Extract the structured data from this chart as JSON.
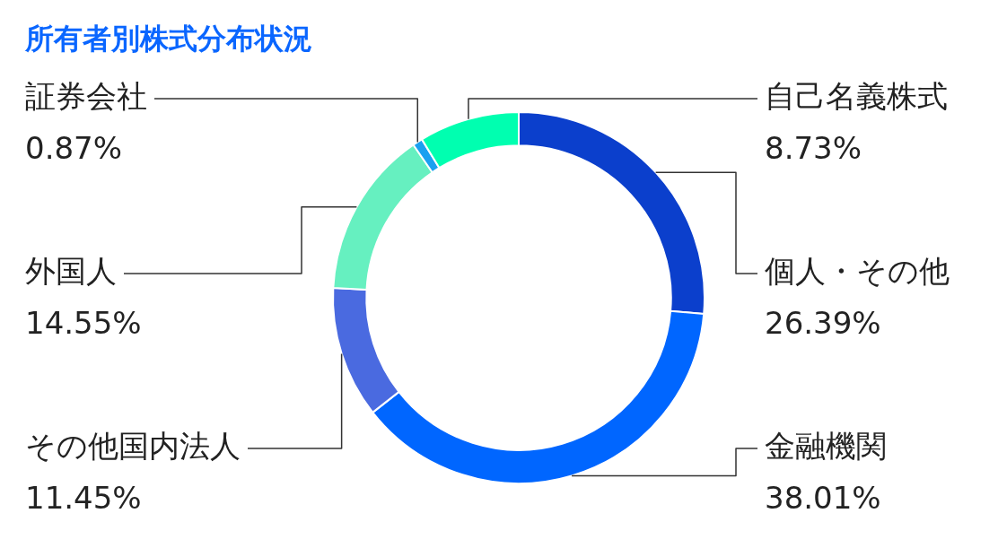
{
  "chart_data": {
    "type": "donut",
    "title": "所有者別株式分布状況",
    "categories": [
      "個人・その他",
      "金融機関",
      "その他国内法人",
      "外国人",
      "証券会社",
      "自己名義株式"
    ],
    "values": [
      26.39,
      38.01,
      11.45,
      14.55,
      0.87,
      8.73
    ],
    "colors": [
      "#0b3fcc",
      "#0066ff",
      "#4a6ae0",
      "#66f0c0",
      "#1aa0f0",
      "#00ffb0"
    ],
    "value_labels": [
      "26.39%",
      "38.01%",
      "11.45%",
      "14.55%",
      "0.87%",
      "8.73%"
    ],
    "legend": false
  }
}
